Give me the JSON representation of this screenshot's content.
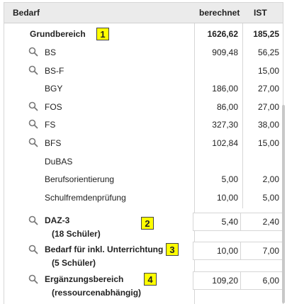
{
  "header": {
    "col1": "Bedarf",
    "col2": "berechnet",
    "col3": "IST"
  },
  "grund": {
    "label": "Grundbereich",
    "berechnet": "1626,62",
    "ist": "185,25",
    "badge": "1"
  },
  "rows": [
    {
      "label": "BS",
      "berechnet": "909,48",
      "ist": "56,25",
      "icon": "search-icon"
    },
    {
      "label": "BS-F",
      "berechnet": "",
      "ist": "15,00",
      "icon": "search-icon"
    },
    {
      "label": "BGY",
      "berechnet": "186,00",
      "ist": "27,00",
      "icon": ""
    },
    {
      "label": "FOS",
      "berechnet": "86,00",
      "ist": "27,00",
      "icon": "search-icon"
    },
    {
      "label": "FS",
      "berechnet": "327,30",
      "ist": "38,00",
      "icon": "search-icon"
    },
    {
      "label": "BFS",
      "berechnet": "102,84",
      "ist": "15,00",
      "icon": "search-icon"
    },
    {
      "label": "DuBAS",
      "berechnet": "",
      "ist": "",
      "icon": ""
    },
    {
      "label": "Berufsorientierung",
      "berechnet": "5,00",
      "ist": "2,00",
      "icon": ""
    },
    {
      "label": "Schulfremdenprüfung",
      "berechnet": "10,00",
      "ist": "5,00",
      "icon": ""
    }
  ],
  "special": [
    {
      "label": "DAZ-3",
      "sub": "(18 Schüler)",
      "berechnet": "5,40",
      "ist": "2,40",
      "badge": "2"
    },
    {
      "label": "Bedarf für inkl. Unterrichtung",
      "sub": "(5 Schüler)",
      "berechnet": "10,00",
      "ist": "7,00",
      "badge": "3"
    },
    {
      "label": "Ergänzungsbereich",
      "sub": "(ressourcenabhängig)",
      "berechnet": "109,20",
      "ist": "6,00",
      "badge": "4"
    }
  ]
}
